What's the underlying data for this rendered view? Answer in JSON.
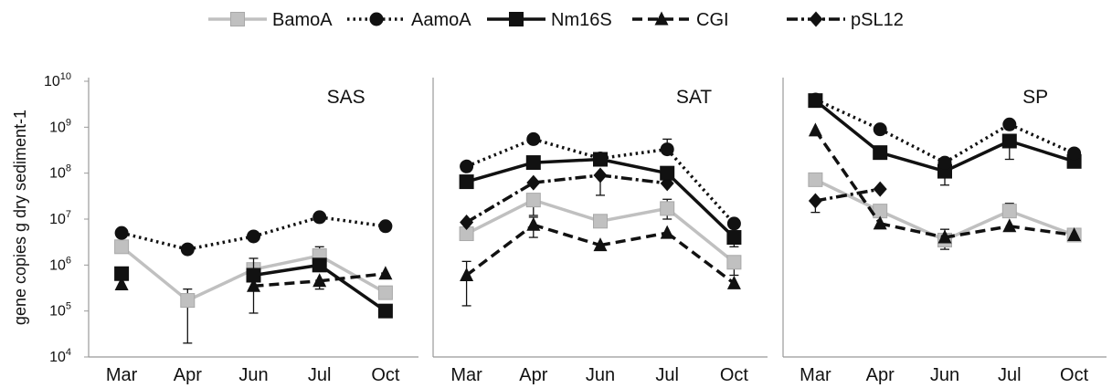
{
  "chart_data": {
    "type": "line",
    "ylabel": "gene copies g dry sediment-1",
    "yscale": "log",
    "ylim": [
      10000,
      10000000000
    ],
    "y_ticks": [
      {
        "value": 10000,
        "base": "10",
        "exp": "4"
      },
      {
        "value": 100000,
        "base": "10",
        "exp": "5"
      },
      {
        "value": 1000000,
        "base": "10",
        "exp": "6"
      },
      {
        "value": 10000000,
        "base": "10",
        "exp": "7"
      },
      {
        "value": 100000000,
        "base": "10",
        "exp": "8"
      },
      {
        "value": 1000000000,
        "base": "10",
        "exp": "9"
      },
      {
        "value": 10000000000,
        "base": "10",
        "exp": "10"
      }
    ],
    "categories": [
      "Mar",
      "Apr",
      "Jun",
      "Jul",
      "Oct"
    ],
    "legend": [
      {
        "name": "BamoA",
        "color": "#c0c0c0",
        "dash": "solid",
        "marker": "square"
      },
      {
        "name": "AamoA",
        "color": "#111111",
        "dash": "dotted",
        "marker": "circle"
      },
      {
        "name": "Nm16S",
        "color": "#111111",
        "dash": "solid",
        "marker": "square"
      },
      {
        "name": "CGI",
        "color": "#111111",
        "dash": "dashed",
        "marker": "triangle"
      },
      {
        "name": "pSL12",
        "color": "#111111",
        "dash": "dashdot",
        "marker": "diamond"
      }
    ],
    "panels": [
      {
        "label": "SAS",
        "series": [
          {
            "name": "BamoA",
            "values": [
              2500000,
              170000,
              800000,
              1600000,
              250000
            ],
            "err": [
              null,
              [
                20000,
                300000
              ],
              null,
              [
                null,
                2500000
              ],
              null
            ]
          },
          {
            "name": "AamoA",
            "values": [
              5000000,
              2200000,
              4200000,
              11000000,
              7000000
            ]
          },
          {
            "name": "Nm16S",
            "values": [
              650000,
              null,
              600000,
              1000000,
              100000
            ],
            "err": [
              null,
              null,
              [
                null,
                1400000
              ],
              null,
              null
            ]
          },
          {
            "name": "CGI",
            "values": [
              380000,
              null,
              350000,
              450000,
              650000
            ],
            "err": [
              null,
              null,
              [
                90000,
                null
              ],
              [
                300000,
                null
              ],
              null
            ]
          },
          {
            "name": "pSL12",
            "values": [
              null,
              null,
              null,
              null,
              null
            ]
          }
        ]
      },
      {
        "label": "SAT",
        "series": [
          {
            "name": "BamoA",
            "values": [
              4800000,
              26000000,
              9000000,
              17000000,
              1150000
            ],
            "err": [
              null,
              [
                12000000,
                35000000
              ],
              null,
              [
                10000000,
                27000000
              ],
              [
                600000,
                null
              ]
            ]
          },
          {
            "name": "AamoA",
            "values": [
              140000000,
              550000000,
              210000000,
              330000000,
              8000000
            ],
            "err": [
              null,
              null,
              null,
              [
                null,
                550000000
              ],
              null
            ]
          },
          {
            "name": "Nm16S",
            "values": [
              65000000,
              170000000,
              200000000,
              100000000,
              4000000
            ],
            "err": [
              null,
              null,
              null,
              null,
              [
                2500000,
                null
              ]
            ]
          },
          {
            "name": "CGI",
            "values": [
              600000,
              7500000,
              2700000,
              5000000,
              400000
            ],
            "err": [
              [
                130000,
                1200000
              ],
              [
                4000000,
                11000000
              ],
              null,
              null,
              null
            ]
          },
          {
            "name": "pSL12",
            "values": [
              8500000,
              62000000,
              90000000,
              60000000,
              null
            ],
            "err": [
              null,
              null,
              [
                33000000,
                null
              ],
              null,
              null
            ]
          }
        ]
      },
      {
        "label": "SP",
        "series": [
          {
            "name": "BamoA",
            "values": [
              72000000,
              15000000,
              3500000,
              15000000,
              4500000
            ],
            "err": [
              null,
              null,
              [
                2200000,
                null
              ],
              [
                null,
                22000000
              ],
              null
            ]
          },
          {
            "name": "AamoA",
            "values": [
              4000000000,
              900000000,
              170000000,
              1150000000,
              270000000
            ]
          },
          {
            "name": "Nm16S",
            "values": [
              3800000000,
              280000000,
              110000000,
              500000000,
              180000000
            ],
            "err": [
              null,
              null,
              [
                55000000,
                null
              ],
              [
                200000000,
                null
              ],
              null
            ]
          },
          {
            "name": "CGI",
            "values": [
              850000000,
              8000000,
              4000000,
              7000000,
              4500000
            ],
            "err": [
              null,
              null,
              [
                null,
                6000000
              ],
              null,
              null
            ]
          },
          {
            "name": "pSL12",
            "values": [
              25000000,
              45000000,
              null,
              null,
              null
            ],
            "err": [
              [
                14000000,
                null
              ],
              null,
              null,
              null,
              null
            ]
          }
        ]
      }
    ]
  }
}
